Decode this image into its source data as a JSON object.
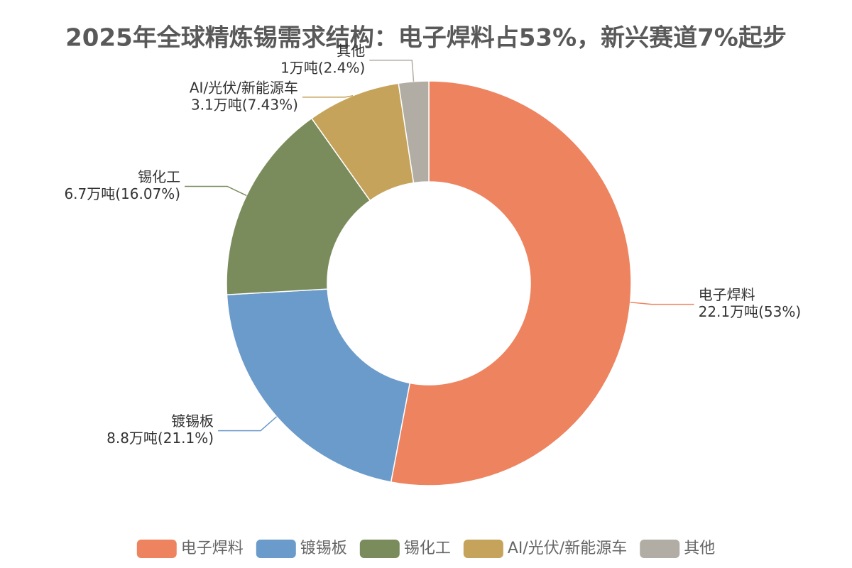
{
  "chart_data": {
    "type": "donut",
    "title": "2025年全球精炼锡需求结构：电子焊料占53%，新兴赛道7%起步",
    "categories": [
      "电子焊料",
      "镀锡板",
      "锡化工",
      "AI/光伏/新能源车",
      "其他"
    ],
    "values": [
      22.1,
      8.8,
      6.7,
      3.1,
      1
    ],
    "value_labels": [
      "22.1万吨(53%)",
      "8.8万吨(21.1%)",
      "6.7万吨(16.07%)",
      "3.1万吨(7.43%)",
      "1万吨(2.4%)"
    ],
    "colors": [
      "#ee8360",
      "#6b9bcb",
      "#7a8c5c",
      "#c6a35a",
      "#b1ada4"
    ],
    "legend": "bottom"
  }
}
